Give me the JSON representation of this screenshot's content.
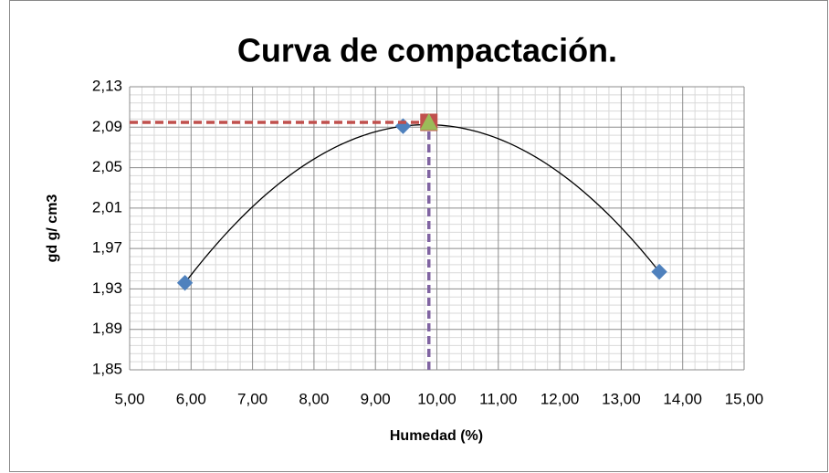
{
  "chart_data": {
    "type": "scatter",
    "title": "Curva de compactación.",
    "x_label": "Humedad (%)",
    "y_label": "gd g/ cm3",
    "xlim": [
      5,
      15
    ],
    "ylim": [
      1.85,
      2.13
    ],
    "xticks": [
      {
        "value": 5,
        "label": "5,00"
      },
      {
        "value": 6,
        "label": "6,00"
      },
      {
        "value": 7,
        "label": "7,00"
      },
      {
        "value": 8,
        "label": "8,00"
      },
      {
        "value": 9,
        "label": "9,00"
      },
      {
        "value": 10,
        "label": "10,00"
      },
      {
        "value": 11,
        "label": "11,00"
      },
      {
        "value": 12,
        "label": "12,00"
      },
      {
        "value": 13,
        "label": "13,00"
      },
      {
        "value": 14,
        "label": "14,00"
      },
      {
        "value": 15,
        "label": "15,00"
      }
    ],
    "yticks": [
      {
        "value": 1.85,
        "label": "1,85"
      },
      {
        "value": 1.89,
        "label": "1,89"
      },
      {
        "value": 1.93,
        "label": "1,93"
      },
      {
        "value": 1.97,
        "label": "1,97"
      },
      {
        "value": 2.01,
        "label": "2,01"
      },
      {
        "value": 2.05,
        "label": "2,05"
      },
      {
        "value": 2.09,
        "label": "2,09"
      },
      {
        "value": 2.13,
        "label": "2,13"
      }
    ],
    "grid": true,
    "minor_grid": true,
    "series": [
      {
        "x": [
          5.9,
          9.45,
          13.62
        ],
        "values": [
          1.936,
          2.091,
          1.947
        ],
        "color": "#4f81bd",
        "marker": "diamond",
        "trendline": {
          "order": 2,
          "color": "#000000"
        }
      },
      {
        "x": [
          5,
          9.87
        ],
        "values": [
          2.0948,
          2.0948
        ],
        "color": "#c0504d",
        "line": "dashed"
      },
      {
        "x": [
          9.87,
          9.87
        ],
        "values": [
          1.85,
          2.0948
        ],
        "color": "#8064a2",
        "line": "dashed"
      },
      {
        "x": [
          9.87
        ],
        "values": [
          2.0948
        ],
        "color": "#c0504d",
        "marker": "square"
      },
      {
        "x": [
          9.87
        ],
        "values": [
          2.0948
        ],
        "color": "#9bbb59",
        "marker": "triangle"
      }
    ]
  }
}
